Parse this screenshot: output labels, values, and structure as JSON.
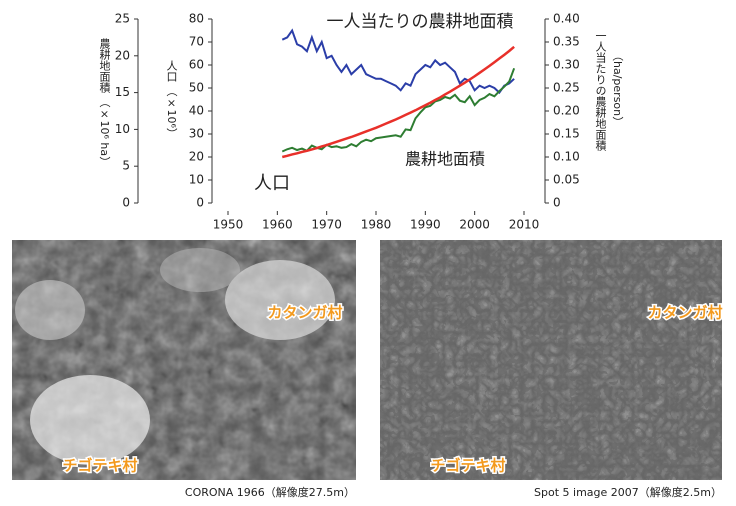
{
  "chart_data": {
    "type": "line",
    "x": [
      1961,
      1962,
      1963,
      1964,
      1965,
      1966,
      1967,
      1968,
      1969,
      1970,
      1971,
      1972,
      1973,
      1974,
      1975,
      1976,
      1977,
      1978,
      1979,
      1980,
      1981,
      1982,
      1983,
      1984,
      1985,
      1986,
      1987,
      1988,
      1989,
      1990,
      1991,
      1992,
      1993,
      1994,
      1995,
      1996,
      1997,
      1998,
      1999,
      2000,
      2001,
      2002,
      2003,
      2004,
      2005,
      2006,
      2007,
      2008
    ],
    "xlim": [
      1950,
      2010
    ],
    "xticks": [
      1950,
      1960,
      1970,
      1980,
      1990,
      2000,
      2010
    ],
    "ylabel": "農耕地面積 （×10⁶ ha）",
    "ylim": [
      0,
      25
    ],
    "yticks": [
      0,
      5,
      10,
      15,
      20,
      25
    ],
    "y3label": "人口 （×10⁶）",
    "y3lim": [
      0,
      80
    ],
    "y3ticks": [
      0,
      10,
      20,
      30,
      40,
      50,
      60,
      70,
      80
    ],
    "y2label": [
      "一人当たりの農耕地面積",
      "（ha/person）"
    ],
    "y2lim": [
      0,
      0.4
    ],
    "y2ticks": [
      0,
      {
        "value": 0.05,
        "label": "0.05"
      },
      {
        "value": 0.1,
        "label": "0.10"
      },
      0.15,
      {
        "value": 0.2,
        "label": "0.20"
      },
      0.25,
      {
        "value": 0.3,
        "label": "0.30"
      },
      0.35,
      {
        "value": 0.4,
        "label": "0.40"
      }
    ],
    "series": [
      {
        "name": "一人当たりの農耕地面積",
        "color": "#2b3ea8",
        "axis": "y2",
        "values": [
          0.355,
          0.36,
          0.375,
          0.345,
          0.34,
          0.33,
          0.36,
          0.33,
          0.35,
          0.315,
          0.32,
          0.3,
          0.285,
          0.3,
          0.28,
          0.29,
          0.3,
          0.28,
          0.275,
          0.27,
          0.27,
          0.265,
          0.26,
          0.255,
          0.245,
          0.26,
          0.255,
          0.28,
          0.29,
          0.3,
          0.295,
          0.31,
          0.3,
          0.305,
          0.295,
          0.285,
          0.26,
          0.27,
          0.265,
          0.245,
          0.255,
          0.25,
          0.255,
          0.25,
          0.24,
          0.255,
          0.26,
          0.27
        ]
      },
      {
        "name": "農耕地面積",
        "color": "#2e7d32",
        "axis": "y",
        "values": [
          7.0,
          7.3,
          7.5,
          7.2,
          7.4,
          7.1,
          7.8,
          7.5,
          7.3,
          7.9,
          7.6,
          7.7,
          7.5,
          7.6,
          8.0,
          7.7,
          8.3,
          8.6,
          8.4,
          8.8,
          8.9,
          9.0,
          9.1,
          9.2,
          9.0,
          10.0,
          9.9,
          11.5,
          12.3,
          13.0,
          13.2,
          13.8,
          14.0,
          14.4,
          14.2,
          14.7,
          13.9,
          13.7,
          14.5,
          13.3,
          14.0,
          14.3,
          14.8,
          14.5,
          15.2,
          15.8,
          16.5,
          18.3
        ]
      },
      {
        "name": "人口",
        "color": "#e8302a",
        "axis": "y3",
        "values": [
          20,
          20.5,
          21.1,
          21.6,
          22.2,
          22.7,
          23.3,
          23.9,
          24.6,
          25.2,
          25.9,
          26.6,
          27.3,
          28.0,
          28.7,
          29.5,
          30.3,
          31.1,
          31.9,
          32.7,
          33.6,
          34.5,
          35.4,
          36.3,
          37.3,
          38.3,
          39.3,
          40.3,
          41.4,
          42.5,
          43.6,
          44.8,
          45.9,
          47.2,
          48.4,
          49.7,
          51.0,
          52.3,
          53.7,
          55.1,
          56.6,
          58.1,
          59.6,
          61.2,
          62.8,
          64.4,
          66.1,
          67.9
        ]
      }
    ]
  },
  "images": [
    {
      "caption": "CORONA 1966（解像度27.5m）",
      "labels": [
        "カタンガ村",
        "チゴテキ村"
      ]
    },
    {
      "caption": "Spot 5 image 2007（解像度2.5m）",
      "labels": [
        "カタンガ村",
        "チゴテキ村"
      ]
    }
  ]
}
